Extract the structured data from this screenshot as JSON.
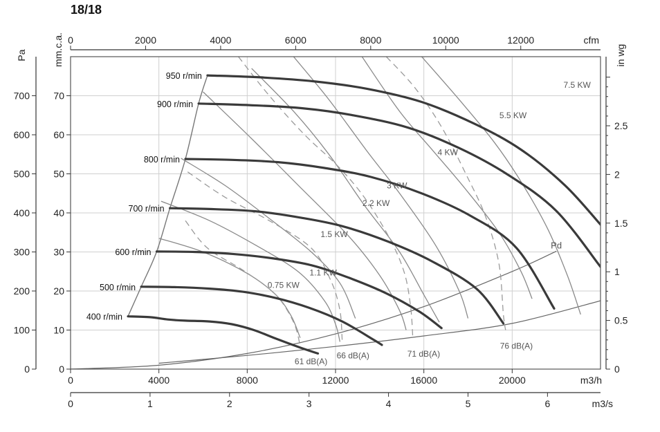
{
  "title": "18/18",
  "chart_data": {
    "type": "line",
    "title": "18/18",
    "x_bottom": {
      "label": "m3/h",
      "min": 0,
      "max": 24000,
      "ticks": [
        0,
        4000,
        8000,
        12000,
        16000,
        20000
      ]
    },
    "x_m3s": {
      "label": "m3/s",
      "min": 0,
      "max": 6.667,
      "ticks": [
        0,
        1,
        2,
        3,
        4,
        5,
        6
      ]
    },
    "x_top": {
      "label": "cfm",
      "min": 0,
      "max": 14126,
      "ticks": [
        0,
        2000,
        4000,
        6000,
        8000,
        10000,
        12000
      ]
    },
    "y_pa": {
      "label": "Pa",
      "min": 0,
      "max": 800,
      "ticks": [
        0,
        100,
        200,
        300,
        400,
        500,
        600,
        700
      ]
    },
    "y_mmca": {
      "label": "mm.c.a.",
      "min": 0,
      "max": 80,
      "ticks": [
        0,
        10,
        20,
        30,
        40,
        50,
        60,
        70
      ]
    },
    "y_inwg": {
      "label": "in wg",
      "min": 0,
      "max": 3.21,
      "ticks": [
        "0",
        "0.5",
        "1",
        "1.5",
        "2",
        "2.5"
      ]
    },
    "grid": true,
    "speed_curves": [
      {
        "name": "400 r/min",
        "points": [
          [
            2600,
            135
          ],
          [
            3600,
            133
          ],
          [
            4400,
            127
          ],
          [
            5200,
            124
          ],
          [
            6300,
            122
          ],
          [
            7300,
            115
          ],
          [
            8300,
            100
          ],
          [
            9300,
            78
          ],
          [
            10400,
            55
          ],
          [
            11200,
            40
          ]
        ]
      },
      {
        "name": "500 r/min",
        "points": [
          [
            3200,
            211
          ],
          [
            4700,
            210
          ],
          [
            6300,
            206
          ],
          [
            7800,
            198
          ],
          [
            9300,
            182
          ],
          [
            10800,
            157
          ],
          [
            12300,
            122
          ],
          [
            13700,
            76
          ],
          [
            14100,
            62
          ]
        ]
      },
      {
        "name": "600 r/min",
        "points": [
          [
            3900,
            301
          ],
          [
            5600,
            300
          ],
          [
            7300,
            295
          ],
          [
            9100,
            284
          ],
          [
            10900,
            266
          ],
          [
            12600,
            234
          ],
          [
            14300,
            194
          ],
          [
            15800,
            147
          ],
          [
            16800,
            105
          ]
        ]
      },
      {
        "name": "700 r/min",
        "points": [
          [
            4500,
            412
          ],
          [
            6300,
            410
          ],
          [
            8400,
            404
          ],
          [
            10400,
            388
          ],
          [
            12300,
            366
          ],
          [
            14400,
            326
          ],
          [
            16400,
            275
          ],
          [
            18400,
            205
          ],
          [
            19600,
            117
          ]
        ]
      },
      {
        "name": "800 r/min",
        "points": [
          [
            5200,
            538
          ],
          [
            7200,
            536
          ],
          [
            9400,
            530
          ],
          [
            11500,
            515
          ],
          [
            13600,
            492
          ],
          [
            15900,
            450
          ],
          [
            18100,
            393
          ],
          [
            20200,
            310
          ],
          [
            21900,
            155
          ]
        ]
      },
      {
        "name": "900 r/min",
        "points": [
          [
            5800,
            680
          ],
          [
            8100,
            676
          ],
          [
            10500,
            668
          ],
          [
            12800,
            650
          ],
          [
            15300,
            618
          ],
          [
            17600,
            566
          ],
          [
            19800,
            498
          ],
          [
            22000,
            405
          ],
          [
            24000,
            262
          ]
        ]
      },
      {
        "name": "950 r/min",
        "points": [
          [
            6200,
            752
          ],
          [
            8600,
            747
          ],
          [
            11000,
            737
          ],
          [
            13400,
            718
          ],
          [
            15900,
            684
          ],
          [
            18300,
            628
          ],
          [
            20400,
            562
          ],
          [
            22400,
            470
          ],
          [
            24000,
            370
          ]
        ]
      }
    ],
    "power_curves": [
      {
        "name": "0.75 KW",
        "points": [
          [
            4000,
            335
          ],
          [
            6000,
            300
          ],
          [
            8000,
            245
          ],
          [
            9300,
            190
          ],
          [
            10000,
            135
          ],
          [
            10400,
            80
          ]
        ]
      },
      {
        "name": "1.1 KW",
        "points": [
          [
            4100,
            430
          ],
          [
            6300,
            380
          ],
          [
            8300,
            320
          ],
          [
            10300,
            250
          ],
          [
            11500,
            175
          ],
          [
            12000,
            115
          ],
          [
            12200,
            70
          ]
        ]
      },
      {
        "name": "1.5 KW",
        "points": [
          [
            5000,
            540
          ],
          [
            7000,
            470
          ],
          [
            8900,
            390
          ],
          [
            10900,
            300
          ],
          [
            12200,
            220
          ],
          [
            12900,
            130
          ]
        ]
      },
      {
        "name": "2.2 KW",
        "points": [
          [
            6000,
            710
          ],
          [
            8200,
            590
          ],
          [
            10500,
            460
          ],
          [
            12600,
            340
          ],
          [
            14000,
            240
          ],
          [
            14900,
            150
          ],
          [
            15200,
            100
          ]
        ]
      },
      {
        "name": "3 KW",
        "points": [
          [
            8200,
            770
          ],
          [
            10100,
            660
          ],
          [
            11700,
            550
          ],
          [
            13300,
            420
          ],
          [
            14900,
            300
          ],
          [
            16000,
            190
          ],
          [
            16700,
            120
          ]
        ]
      },
      {
        "name": "4 KW",
        "points": [
          [
            10100,
            800
          ],
          [
            11700,
            690
          ],
          [
            13400,
            560
          ],
          [
            14900,
            450
          ],
          [
            16500,
            320
          ],
          [
            17600,
            200
          ],
          [
            18000,
            130
          ]
        ]
      },
      {
        "name": "5.5 KW",
        "points": [
          [
            13200,
            800
          ],
          [
            14900,
            660
          ],
          [
            16400,
            560
          ],
          [
            17900,
            460
          ],
          [
            19400,
            350
          ],
          [
            20400,
            250
          ],
          [
            20900,
            180
          ]
        ]
      },
      {
        "name": "7.5 KW",
        "points": [
          [
            15900,
            800
          ],
          [
            17600,
            690
          ],
          [
            19200,
            580
          ],
          [
            20400,
            480
          ],
          [
            21600,
            360
          ],
          [
            22500,
            240
          ],
          [
            23100,
            140
          ]
        ]
      }
    ],
    "sound_curves": [
      {
        "name": "61 dB(A)",
        "points": [
          [
            5200,
            380
          ],
          [
            6200,
            310
          ],
          [
            7900,
            250
          ],
          [
            9300,
            190
          ],
          [
            10100,
            120
          ],
          [
            10400,
            60
          ]
        ]
      },
      {
        "name": "66 dB(A)",
        "points": [
          [
            5300,
            505
          ],
          [
            7000,
            440
          ],
          [
            9000,
            380
          ],
          [
            10900,
            310
          ],
          [
            11800,
            225
          ],
          [
            12200,
            150
          ],
          [
            12300,
            75
          ]
        ]
      },
      {
        "name": "71 dB(A)",
        "points": [
          [
            7600,
            800
          ],
          [
            9000,
            700
          ],
          [
            10600,
            600
          ],
          [
            12100,
            520
          ],
          [
            13300,
            440
          ],
          [
            14400,
            340
          ],
          [
            15100,
            250
          ],
          [
            15400,
            160
          ],
          [
            15500,
            80
          ]
        ]
      },
      {
        "name": "76 dB(A)",
        "points": [
          [
            14300,
            800
          ],
          [
            15600,
            720
          ],
          [
            16800,
            620
          ],
          [
            17900,
            500
          ],
          [
            18800,
            390
          ],
          [
            19400,
            270
          ],
          [
            19600,
            140
          ],
          [
            19700,
            100
          ]
        ]
      }
    ],
    "labels": {
      "pd": "Pd",
      "speeds": [
        "400 r/min",
        "500 r/min",
        "600 r/min",
        "700 r/min",
        "800 r/min",
        "900 r/min",
        "950 r/min"
      ],
      "powers": [
        "0.75 KW",
        "1.1 KW",
        "1.5 KW",
        "2.2 KW",
        "3 KW",
        "4 KW",
        "5.5 KW",
        "7.5 KW"
      ],
      "sounds": [
        "61 dB(A)",
        "66 dB(A)",
        "71 dB(A)",
        "76 dB(A)"
      ]
    },
    "pd_curve": {
      "name": "Pd",
      "points": [
        [
          0,
          0
        ],
        [
          4000,
          10
        ],
        [
          8000,
          40
        ],
        [
          12000,
          90
        ],
        [
          16000,
          160
        ],
        [
          20000,
          250
        ],
        [
          22000,
          302
        ]
      ]
    },
    "pd_lower_curve": {
      "name": "",
      "points": [
        [
          4000,
          15
        ],
        [
          8000,
          35
        ],
        [
          12000,
          58
        ],
        [
          16000,
          85
        ],
        [
          20000,
          117
        ],
        [
          24000,
          175
        ]
      ]
    },
    "envelope": {
      "points": [
        [
          2600,
          135
        ],
        [
          3200,
          211
        ],
        [
          3900,
          301
        ],
        [
          4500,
          412
        ],
        [
          5200,
          538
        ],
        [
          5800,
          680
        ],
        [
          6200,
          752
        ]
      ]
    }
  }
}
